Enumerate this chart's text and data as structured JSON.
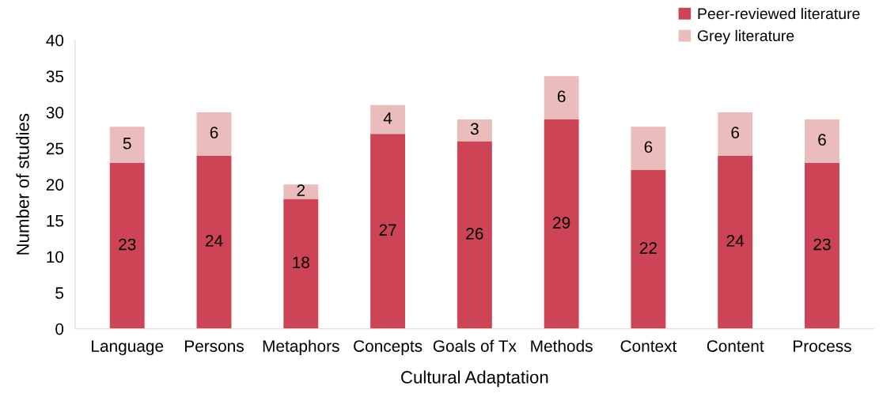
{
  "chart_data": {
    "type": "bar",
    "stacked": true,
    "xlabel": "Cultural Adaptation",
    "ylabel": "Number of studies",
    "categories": [
      "Language",
      "Persons",
      "Metaphors",
      "Concepts",
      "Goals of Tx",
      "Methods",
      "Context",
      "Content",
      "Process"
    ],
    "series": [
      {
        "name": "Peer-reviewed literature",
        "color": "#cc4455",
        "values": [
          23,
          24,
          18,
          27,
          26,
          29,
          22,
          24,
          23
        ]
      },
      {
        "name": "Grey literature",
        "color": "#ebbcbc",
        "values": [
          5,
          6,
          2,
          4,
          3,
          6,
          6,
          6,
          6
        ]
      }
    ],
    "ylim": [
      0,
      40
    ],
    "yticks": [
      0,
      5,
      10,
      15,
      20,
      25,
      30,
      35,
      40
    ],
    "data_labels": true,
    "grid": false,
    "legend": "top right"
  }
}
